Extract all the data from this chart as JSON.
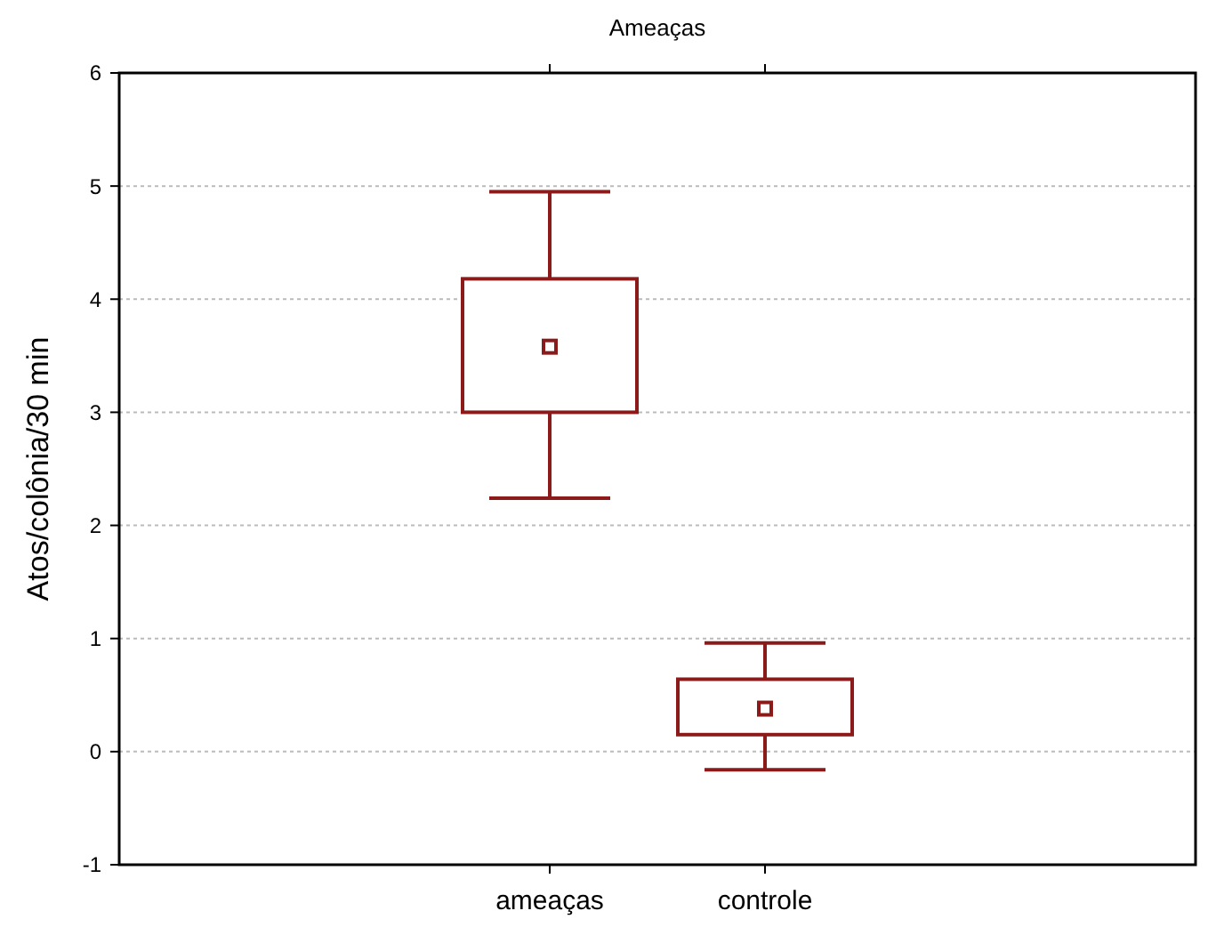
{
  "chart_data": {
    "type": "box",
    "title": "Ameaças",
    "ylabel": "Atos/colônia/30 min",
    "categories": [
      "ameaças",
      "controle"
    ],
    "color": "#8b1a1a",
    "boxes": [
      {
        "low": 2.24,
        "q1": 3.0,
        "median": 3.58,
        "q3": 4.18,
        "high": 4.95
      },
      {
        "low": -0.16,
        "q1": 0.15,
        "median": 0.38,
        "q3": 0.64,
        "high": 0.96
      }
    ],
    "ylim": [
      -1,
      6
    ],
    "yticks": [
      -1,
      0,
      1,
      2,
      3,
      4,
      5,
      6
    ],
    "grid": "y"
  }
}
